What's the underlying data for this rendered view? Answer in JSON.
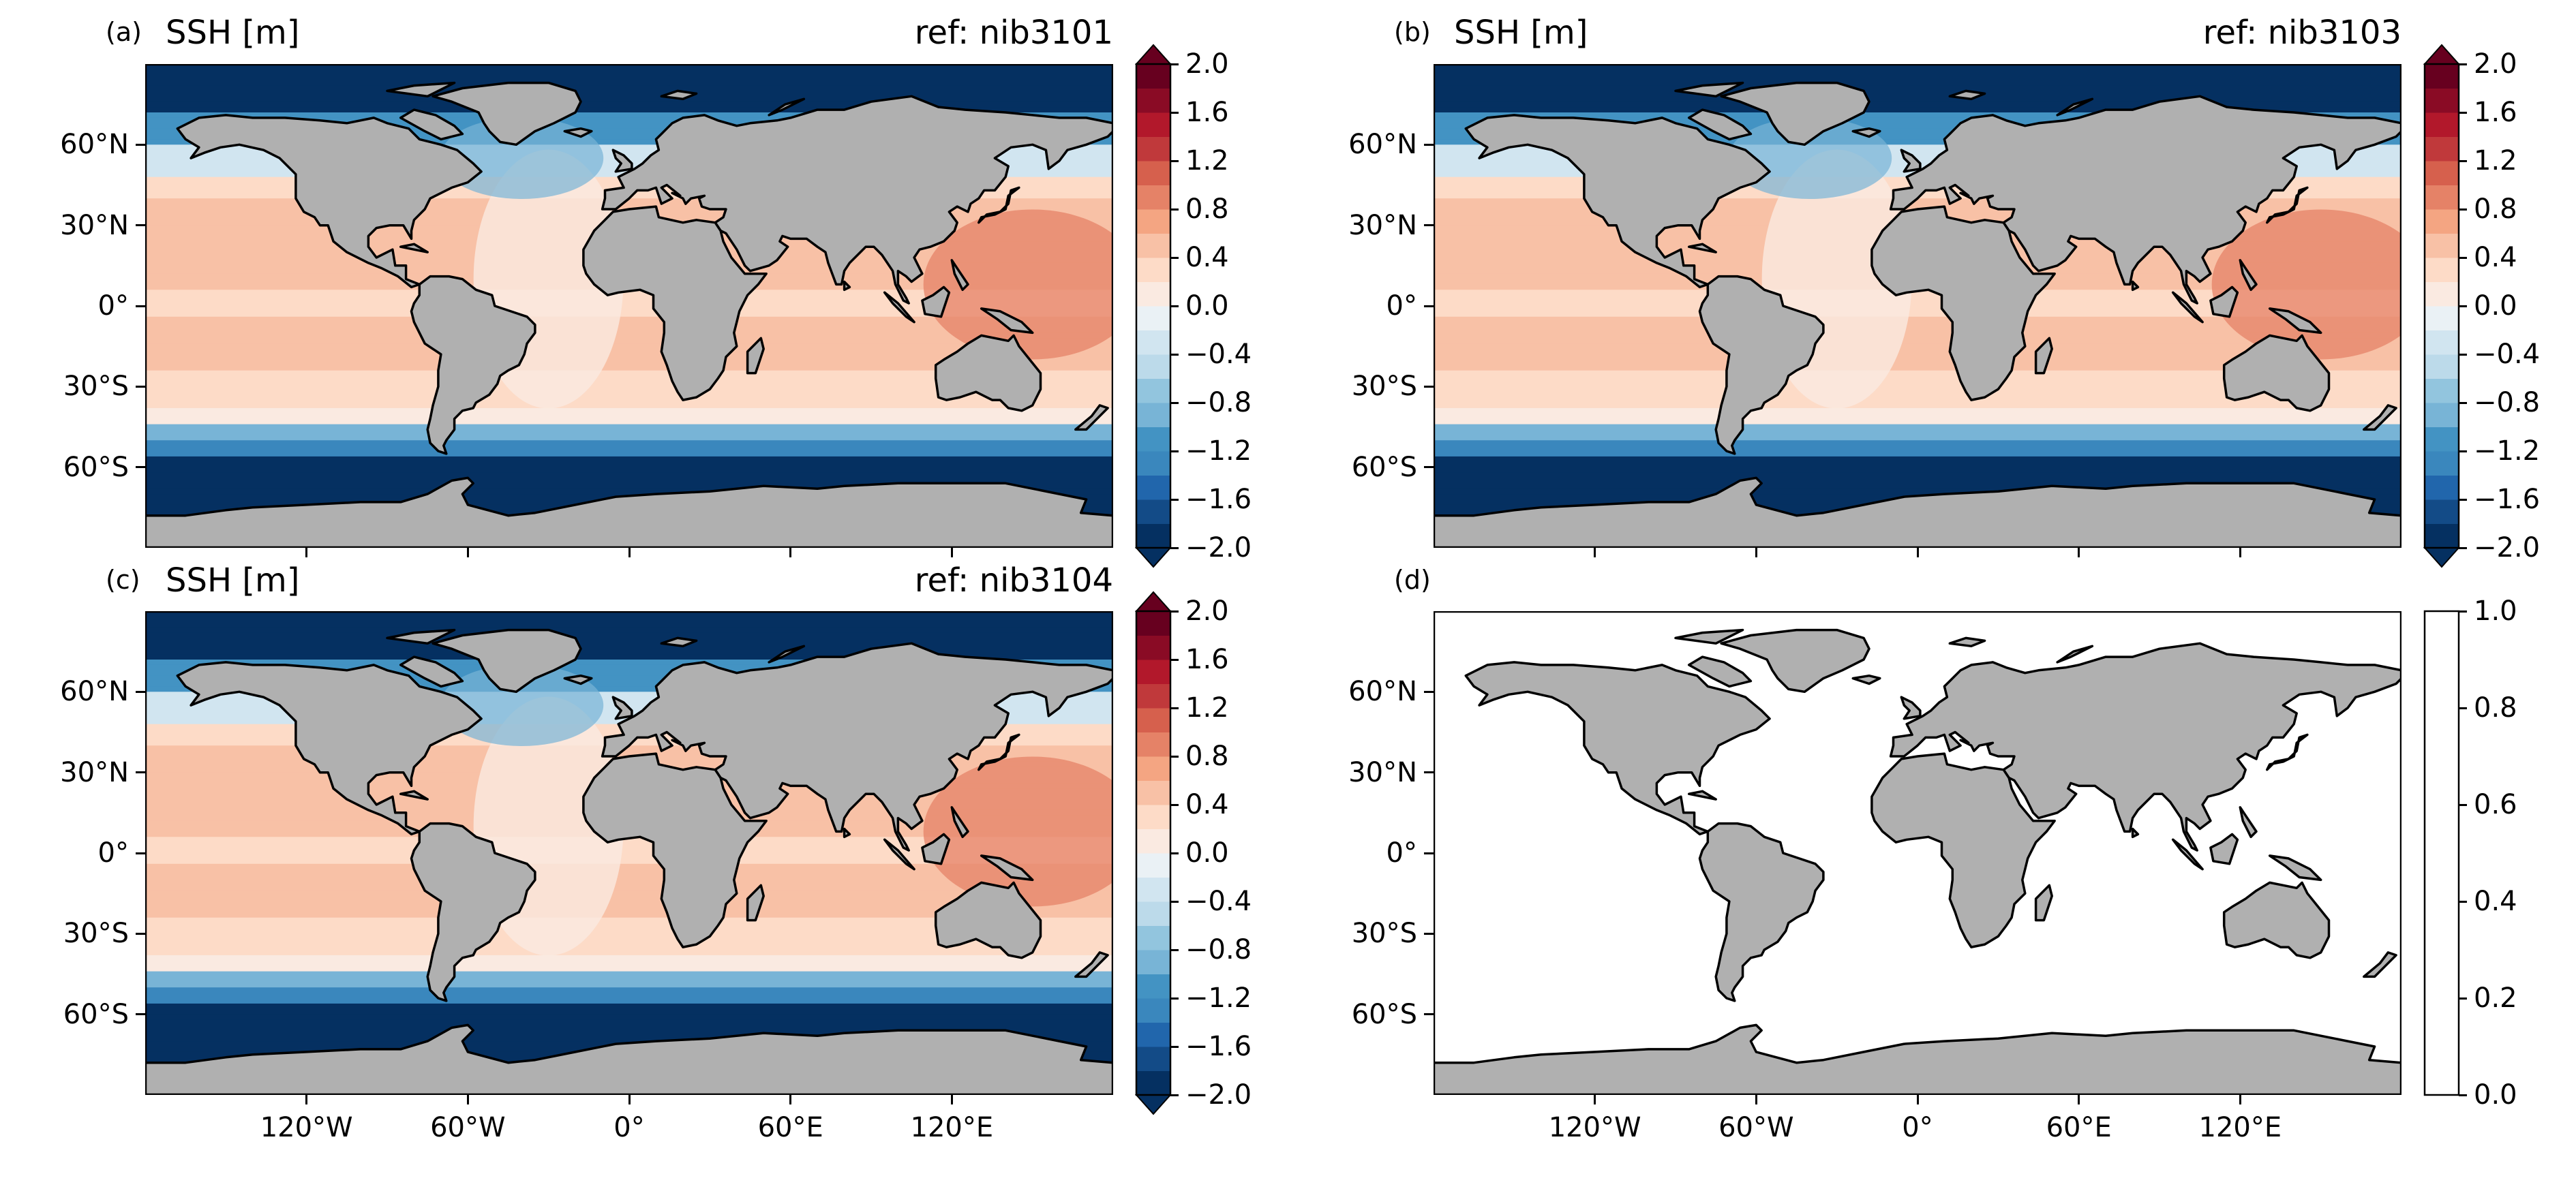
{
  "panels": [
    {
      "label": "(a)",
      "title_left": "SSH [m]",
      "title_right": "ref: nib3101",
      "field": true,
      "colorbar": [
        "2.0",
        "1.6",
        "1.2",
        "0.8",
        "0.4",
        "0.0",
        "−0.4",
        "−0.8",
        "−1.2",
        "−1.6",
        "−2.0"
      ]
    },
    {
      "label": "(b)",
      "title_left": "SSH [m]",
      "title_right": "ref: nib3103",
      "field": true,
      "colorbar": [
        "2.0",
        "1.6",
        "1.2",
        "0.8",
        "0.4",
        "0.0",
        "−0.4",
        "−0.8",
        "−1.2",
        "−1.6",
        "−2.0"
      ]
    },
    {
      "label": "(c)",
      "title_left": "SSH [m]",
      "title_right": "ref: nib3104",
      "field": true,
      "colorbar": [
        "2.0",
        "1.6",
        "1.2",
        "0.8",
        "0.4",
        "0.0",
        "−0.4",
        "−0.8",
        "−1.2",
        "−1.6",
        "−2.0"
      ]
    },
    {
      "label": "(d)",
      "title_left": "",
      "title_right": "",
      "field": false,
      "colorbar": [
        "1.0",
        "0.8",
        "0.6",
        "0.4",
        "0.2",
        "0.0"
      ]
    }
  ],
  "lat_ticks": [
    "60°N",
    "30°N",
    "0°",
    "30°S",
    "60°S"
  ],
  "lon_ticks": [
    "120°W",
    "60°W",
    "0°",
    "60°E",
    "120°E"
  ],
  "colors": {
    "land": "#b0b0b0",
    "coast": "#000000",
    "cmap": [
      "#053061",
      "#134b87",
      "#2166ac",
      "#3a87bd",
      "#4393c3",
      "#78b4d6",
      "#92c5de",
      "#bcdaea",
      "#d1e5f0",
      "#eaf1f5",
      "#faeae1",
      "#fddbc7",
      "#f8c1a6",
      "#f4a582",
      "#e58267",
      "#d6604d",
      "#c0393b",
      "#b2182b",
      "#8a0b25",
      "#67001f"
    ]
  }
}
